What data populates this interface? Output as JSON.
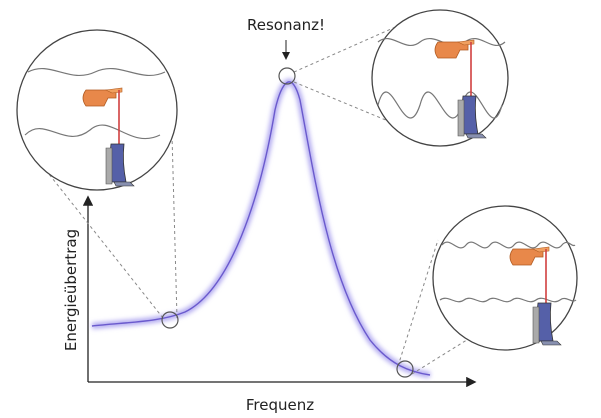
{
  "labels": {
    "peak": "Resonanz!",
    "y_axis": "Energieübertrag",
    "x_axis": "Frequenz"
  }
}
